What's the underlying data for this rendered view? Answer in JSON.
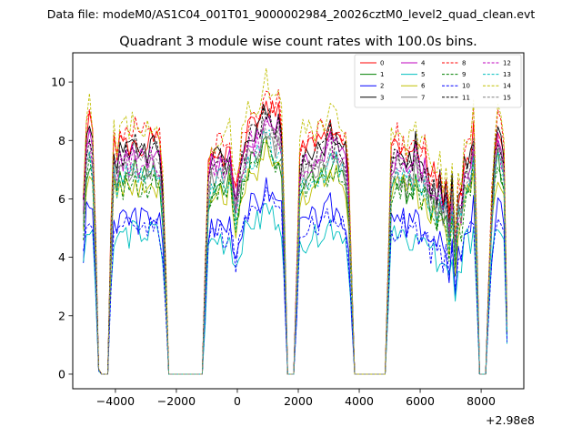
{
  "suptitle": "Data file: modeM0/AS1C04_001T01_9000002984_20026cztM0_level2_quad_clean.evt",
  "chart_data": {
    "type": "line",
    "title": "Quadrant 3 module wise count rates with 100.0s bins.",
    "xlabel": "",
    "ylabel": "",
    "x_offset_label": "+2.98e8",
    "xlim": [
      -5400,
      9400
    ],
    "ylim": [
      -0.5,
      11.0
    ],
    "x_ticks": [
      -4000,
      -2000,
      0,
      2000,
      4000,
      6000,
      8000
    ],
    "x_tick_labels": [
      "−4000",
      "−2000",
      "0",
      "2000",
      "4000",
      "6000",
      "8000"
    ],
    "y_ticks": [
      0,
      2,
      4,
      6,
      8,
      10
    ],
    "y_tick_labels": [
      "0",
      "2",
      "4",
      "6",
      "8",
      "10"
    ],
    "grid": false,
    "legend_position": "top-right",
    "envelope": {
      "x": [
        -5050,
        -4950,
        -4850,
        -4750,
        -4650,
        -4550,
        -4450,
        -4350,
        -4250,
        -4150,
        -4050,
        -3950,
        -3850,
        -3750,
        -3650,
        -3550,
        -3450,
        -3350,
        -3250,
        -3150,
        -3050,
        -2950,
        -2850,
        -2750,
        -2650,
        -2550,
        -2450,
        -2350,
        -2250,
        -2150,
        -2050,
        -1950,
        -1850,
        -1750,
        -1650,
        -1550,
        -1450,
        -1350,
        -1250,
        -1150,
        -1050,
        -950,
        -850,
        -750,
        -650,
        -550,
        -450,
        -350,
        -250,
        -150,
        -50,
        50,
        150,
        250,
        350,
        450,
        550,
        650,
        750,
        850,
        950,
        1050,
        1150,
        1250,
        1350,
        1450,
        1550,
        1650,
        1750,
        1850,
        1950,
        2050,
        2150,
        2250,
        2350,
        2450,
        2550,
        2650,
        2750,
        2850,
        2950,
        3050,
        3150,
        3250,
        3350,
        3450,
        3550,
        3650,
        3750,
        3850,
        3950,
        4050,
        4150,
        4250,
        4350,
        4450,
        4550,
        4650,
        4750,
        4850,
        4950,
        5050,
        5150,
        5250,
        5350,
        5450,
        5550,
        5650,
        5750,
        5850,
        5950,
        6050,
        6150,
        6250,
        6350,
        6450,
        6550,
        6650,
        6750,
        6850,
        6950,
        7050,
        7150,
        7250,
        7350,
        7450,
        7550,
        7650,
        7750,
        7850,
        7950,
        8050,
        8150,
        8250,
        8350,
        8450,
        8550,
        8650,
        8750,
        8850
      ],
      "y": [
        0.7,
        0.95,
        1.0,
        0.95,
        0.55,
        0.02,
        0.0,
        0.0,
        0.0,
        0.55,
        0.92,
        0.85,
        0.95,
        0.9,
        0.92,
        0.9,
        0.93,
        0.95,
        0.9,
        0.92,
        0.93,
        0.9,
        0.93,
        0.95,
        0.92,
        0.9,
        0.75,
        0.4,
        0.0,
        0.0,
        0.0,
        0.0,
        0.0,
        0.0,
        0.0,
        0.0,
        0.0,
        0.0,
        0.0,
        0.0,
        0.4,
        0.8,
        0.88,
        0.87,
        0.88,
        0.9,
        0.86,
        0.87,
        0.92,
        0.8,
        0.7,
        0.8,
        0.88,
        0.93,
        0.97,
        1.0,
        1.0,
        1.0,
        1.0,
        1.08,
        1.1,
        1.07,
        1.05,
        1.02,
        1.05,
        0.98,
        0.55,
        0.0,
        0.0,
        0.0,
        0.4,
        0.85,
        0.9,
        0.88,
        0.9,
        0.92,
        0.9,
        0.92,
        0.95,
        0.94,
        0.96,
        1.0,
        0.95,
        0.98,
        0.94,
        0.93,
        0.9,
        0.75,
        0.4,
        0.0,
        0.0,
        0.0,
        0.0,
        0.0,
        0.0,
        0.0,
        0.0,
        0.0,
        0.0,
        0.0,
        0.4,
        0.88,
        0.9,
        0.92,
        0.88,
        0.92,
        0.85,
        0.9,
        0.88,
        0.95,
        0.87,
        0.85,
        0.88,
        0.8,
        0.75,
        0.8,
        0.72,
        0.78,
        0.7,
        0.75,
        0.6,
        0.78,
        0.5,
        0.72,
        0.7,
        0.85,
        0.88,
        0.88,
        1.0,
        0.55,
        0.0,
        0.0,
        0.0,
        0.35,
        0.7,
        0.9,
        1.0,
        0.95,
        0.85,
        0.2
      ]
    },
    "series": [
      {
        "name": "0",
        "color": "#ff0000",
        "style": "solid",
        "level": 8.6
      },
      {
        "name": "1",
        "color": "#008000",
        "style": "solid",
        "level": 7.3
      },
      {
        "name": "2",
        "color": "#0000ff",
        "style": "solid",
        "level": 5.8
      },
      {
        "name": "3",
        "color": "#000000",
        "style": "solid",
        "level": 8.4
      },
      {
        "name": "4",
        "color": "#bf00bf",
        "style": "solid",
        "level": 8.1
      },
      {
        "name": "5",
        "color": "#00bfbf",
        "style": "solid",
        "level": 5.2
      },
      {
        "name": "6",
        "color": "#bfbf00",
        "style": "solid",
        "level": 7.0
      },
      {
        "name": "7",
        "color": "#808080",
        "style": "solid",
        "level": 7.6
      },
      {
        "name": "8",
        "color": "#ff0000",
        "style": "dashed",
        "level": 8.9
      },
      {
        "name": "9",
        "color": "#008000",
        "style": "dashed",
        "level": 7.1
      },
      {
        "name": "10",
        "color": "#0000ff",
        "style": "dashed",
        "level": 5.5
      },
      {
        "name": "11",
        "color": "#000000",
        "style": "dashed",
        "level": 8.2
      },
      {
        "name": "12",
        "color": "#bf00bf",
        "style": "dashed",
        "level": 7.9
      },
      {
        "name": "13",
        "color": "#00bfbf",
        "style": "dashed",
        "level": 7.4
      },
      {
        "name": "14",
        "color": "#bfbf00",
        "style": "dashed",
        "level": 9.2
      },
      {
        "name": "15",
        "color": "#808080",
        "style": "dashed",
        "level": 7.8
      }
    ]
  }
}
